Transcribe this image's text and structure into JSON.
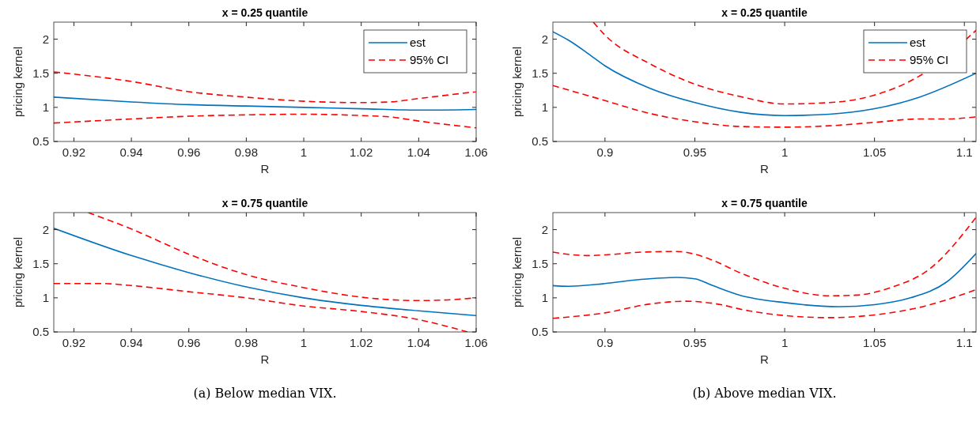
{
  "chart_data": [
    {
      "type": "line",
      "title": "x = 0.25 quantile",
      "xlabel": "R",
      "ylabel": "pricing kernel",
      "xlim": [
        0.913,
        1.06
      ],
      "xticks": [
        0.92,
        0.94,
        0.96,
        0.98,
        1,
        1.02,
        1.04,
        1.06
      ],
      "ylim": [
        0.5,
        2.25
      ],
      "yticks": [
        0.5,
        1,
        1.5,
        2
      ],
      "grid": false,
      "legend": "top right",
      "series": [
        {
          "name": "est",
          "color": "#0072bd",
          "line_style": "solid",
          "x": [
            0.913,
            0.94,
            0.96,
            0.98,
            1.0,
            1.02,
            1.04,
            1.06
          ],
          "values": [
            1.15,
            1.08,
            1.04,
            1.02,
            1.0,
            0.98,
            0.96,
            0.97
          ]
        },
        {
          "name": "95% CI",
          "color": "#ff0000",
          "line_style": "dashed",
          "x": [
            0.913,
            0.94,
            0.96,
            0.98,
            1.0,
            1.02,
            1.03,
            1.04,
            1.06
          ],
          "values": [
            1.52,
            1.38,
            1.23,
            1.15,
            1.09,
            1.07,
            1.08,
            1.13,
            1.23
          ]
        },
        {
          "color": "#ff0000",
          "line_style": "dashed",
          "x": [
            0.913,
            0.94,
            0.96,
            0.98,
            1.0,
            1.02,
            1.03,
            1.04,
            1.06
          ],
          "values": [
            0.77,
            0.83,
            0.87,
            0.89,
            0.9,
            0.88,
            0.86,
            0.8,
            0.7
          ]
        }
      ]
    },
    {
      "type": "line",
      "title": "x = 0.25 quantile",
      "xlabel": "R",
      "ylabel": "pricing kernel",
      "xlim": [
        0.871,
        1.1065
      ],
      "xticks": [
        0.9,
        0.95,
        1,
        1.05,
        1.1
      ],
      "ylim": [
        0.5,
        2.25
      ],
      "yticks": [
        0.5,
        1,
        1.5,
        2
      ],
      "grid": false,
      "legend": "top right",
      "series": [
        {
          "name": "est",
          "color": "#0072bd",
          "line_style": "solid",
          "x": [
            0.871,
            0.88,
            0.89,
            0.9,
            0.925,
            0.95,
            0.975,
            1.0,
            1.025,
            1.05,
            1.075,
            1.1065
          ],
          "values": [
            2.11,
            1.98,
            1.8,
            1.61,
            1.28,
            1.07,
            0.93,
            0.88,
            0.9,
            0.98,
            1.15,
            1.5
          ]
        },
        {
          "name": "95% CI",
          "color": "#ff0000",
          "line_style": "dashed",
          "x": [
            0.8935,
            0.9,
            0.925,
            0.95,
            0.975,
            1.0,
            1.025,
            1.05,
            1.075,
            1.1065
          ],
          "values": [
            2.25,
            2.06,
            1.64,
            1.34,
            1.16,
            1.05,
            1.07,
            1.18,
            1.46,
            2.13
          ]
        },
        {
          "color": "#ff0000",
          "line_style": "dashed",
          "x": [
            0.871,
            0.9,
            0.925,
            0.95,
            0.975,
            1.0,
            1.025,
            1.05,
            1.075,
            1.09,
            1.1065
          ],
          "values": [
            1.32,
            1.1,
            0.91,
            0.79,
            0.72,
            0.71,
            0.73,
            0.78,
            0.83,
            0.83,
            0.86
          ]
        }
      ]
    },
    {
      "type": "line",
      "title": "x = 0.75 quantile",
      "xlabel": "R",
      "ylabel": "pricing kernel",
      "xlim": [
        0.913,
        1.06
      ],
      "xticks": [
        0.92,
        0.94,
        0.96,
        0.98,
        1,
        1.02,
        1.04,
        1.06
      ],
      "ylim": [
        0.5,
        2.25
      ],
      "yticks": [
        0.5,
        1,
        1.5,
        2
      ],
      "grid": false,
      "legend": false,
      "annotations": [
        "(a) Below median VIX."
      ],
      "series": [
        {
          "color": "#0072bd",
          "line_style": "solid",
          "x": [
            0.913,
            0.94,
            0.96,
            0.98,
            1.0,
            1.02,
            1.04,
            1.06
          ],
          "values": [
            2.02,
            1.62,
            1.37,
            1.16,
            1.0,
            0.89,
            0.81,
            0.74
          ]
        },
        {
          "color": "#ff0000",
          "line_style": "dashed",
          "x": [
            0.925,
            0.94,
            0.96,
            0.98,
            1.0,
            1.02,
            1.04,
            1.05,
            1.06
          ],
          "values": [
            2.25,
            2.01,
            1.64,
            1.34,
            1.15,
            1.01,
            0.96,
            0.97,
            1.0
          ]
        },
        {
          "color": "#ff0000",
          "line_style": "dashed",
          "x": [
            0.913,
            0.93,
            0.94,
            0.96,
            0.98,
            1.0,
            1.02,
            1.04,
            1.057
          ],
          "values": [
            1.21,
            1.21,
            1.18,
            1.09,
            1.0,
            0.88,
            0.8,
            0.68,
            0.5
          ]
        }
      ]
    },
    {
      "type": "line",
      "title": "x = 0.75 quantile",
      "xlabel": "R",
      "ylabel": "pricing kernel",
      "xlim": [
        0.871,
        1.1065
      ],
      "xticks": [
        0.9,
        0.95,
        1,
        1.05,
        1.1
      ],
      "ylim": [
        0.5,
        2.25
      ],
      "yticks": [
        0.5,
        1,
        1.5,
        2
      ],
      "grid": false,
      "legend": false,
      "annotations": [
        "(b) Above median VIX."
      ],
      "series": [
        {
          "color": "#0072bd",
          "line_style": "solid",
          "x": [
            0.871,
            0.88,
            0.9,
            0.92,
            0.94,
            0.95,
            0.96,
            0.975,
            1.0,
            1.03,
            1.05,
            1.07,
            1.09,
            1.1065
          ],
          "values": [
            1.18,
            1.17,
            1.21,
            1.27,
            1.3,
            1.28,
            1.18,
            1.04,
            0.93,
            0.87,
            0.9,
            1.0,
            1.23,
            1.65
          ]
        },
        {
          "color": "#ff0000",
          "line_style": "dashed",
          "x": [
            0.871,
            0.89,
            0.9,
            0.92,
            0.94,
            0.95,
            0.96,
            0.975,
            1.0,
            1.025,
            1.04,
            1.06,
            1.08,
            1.1065
          ],
          "values": [
            1.67,
            1.62,
            1.63,
            1.67,
            1.68,
            1.64,
            1.55,
            1.37,
            1.14,
            1.03,
            1.04,
            1.16,
            1.41,
            2.18
          ]
        },
        {
          "color": "#ff0000",
          "line_style": "dashed",
          "x": [
            0.871,
            0.9,
            0.925,
            0.945,
            0.96,
            0.98,
            1.0,
            1.025,
            1.05,
            1.075,
            1.1065
          ],
          "values": [
            0.7,
            0.78,
            0.91,
            0.95,
            0.92,
            0.81,
            0.74,
            0.71,
            0.75,
            0.86,
            1.12
          ]
        }
      ]
    }
  ]
}
